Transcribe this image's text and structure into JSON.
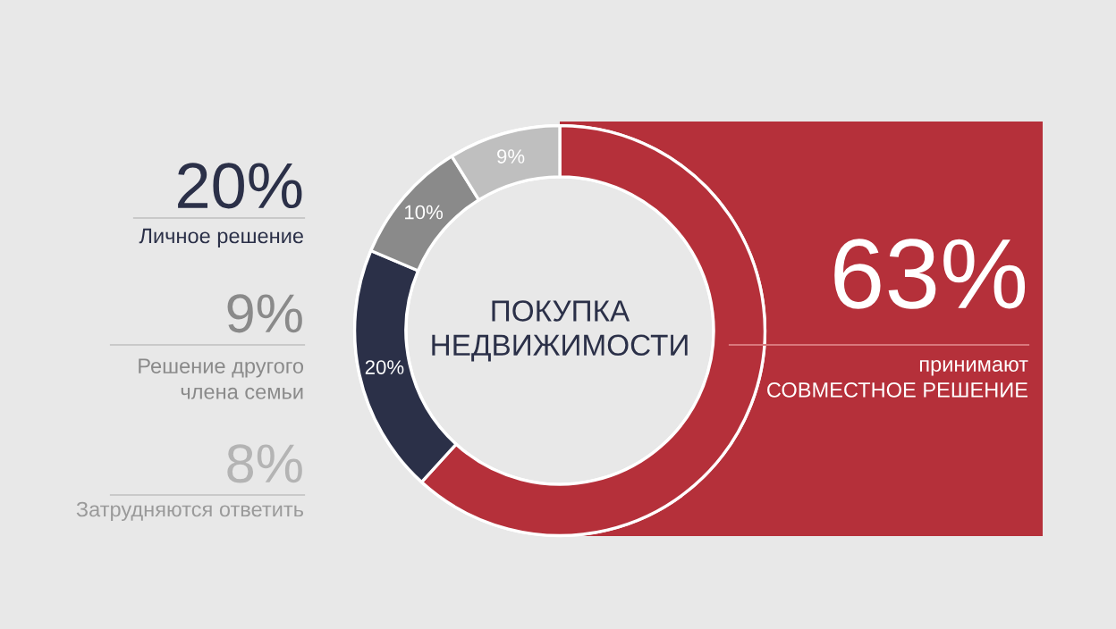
{
  "chart_data": {
    "type": "donut",
    "title": "ПОКУПКА\nНЕДВИЖИМОСТИ",
    "categories": [
      null,
      null,
      null,
      null
    ],
    "values": [
      63,
      20,
      10,
      9
    ],
    "colors": [
      "#b5303a",
      "#2b3048",
      "#8a8a8a",
      "#bfbfbf"
    ],
    "value_labels": [
      null,
      "20%",
      "10%",
      "9%"
    ],
    "annotations": [
      "20%",
      "Личное решение",
      "9%",
      "Решение другого\nчлена семьи",
      "8%",
      "Затрудняются ответить",
      "63%",
      "принимают\nСОВМЕСТНОЕ РЕШЕНИЕ"
    ],
    "legend": false
  }
}
